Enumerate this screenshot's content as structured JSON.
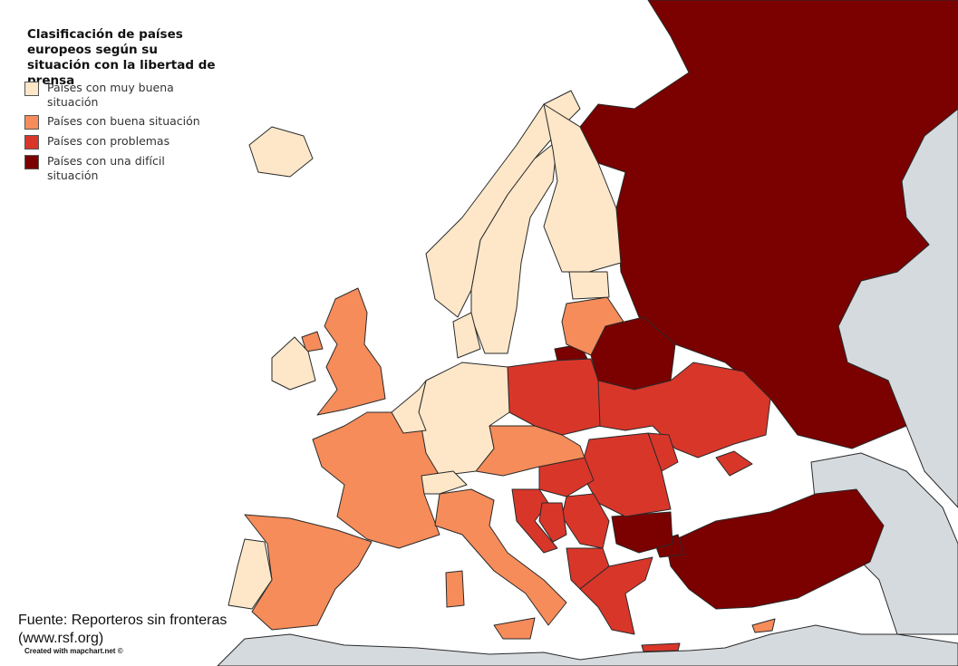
{
  "title": "Clasificación de países europeos según su situación con la libertad de prensa",
  "legend": [
    {
      "label": "Países con muy buena situación",
      "color": "#fde7c8"
    },
    {
      "label": "Países con buena situación",
      "color": "#f68c5a"
    },
    {
      "label": "Países con problemas",
      "color": "#d9362a"
    },
    {
      "label": "Países con una difícil situación",
      "color": "#7b0000"
    }
  ],
  "source": {
    "line1": "Fuente: Reporteros sin fronteras",
    "line2": "(www.rsf.org)"
  },
  "credit": "Created with mapchart.net ©",
  "colors": {
    "very_good": "#fde7c8",
    "good": "#f68c5a",
    "problems": "#d9362a",
    "difficult": "#7b0000",
    "non_europe": "#d5dade",
    "water": "#ffffff"
  },
  "classification": {
    "very_good": [
      "Iceland",
      "Ireland",
      "Portugal",
      "Belgium",
      "Netherlands",
      "Luxembourg",
      "Switzerland",
      "Germany",
      "Denmark",
      "Norway",
      "Sweden",
      "Finland",
      "Estonia"
    ],
    "good": [
      "United Kingdom",
      "France",
      "Spain",
      "Italy",
      "Austria",
      "Czech Republic",
      "Slovakia",
      "Slovenia",
      "Latvia",
      "Lithuania",
      "Cyprus",
      "Malta",
      "Andorra"
    ],
    "problems": [
      "Poland",
      "Hungary",
      "Croatia",
      "Bosnia and Herzegovina",
      "Serbia",
      "Montenegro",
      "Kosovo",
      "Albania",
      "North Macedonia",
      "Greece",
      "Romania",
      "Moldova",
      "Ukraine"
    ],
    "difficult": [
      "Russia",
      "Belarus",
      "Bulgaria",
      "Turkey"
    ]
  }
}
